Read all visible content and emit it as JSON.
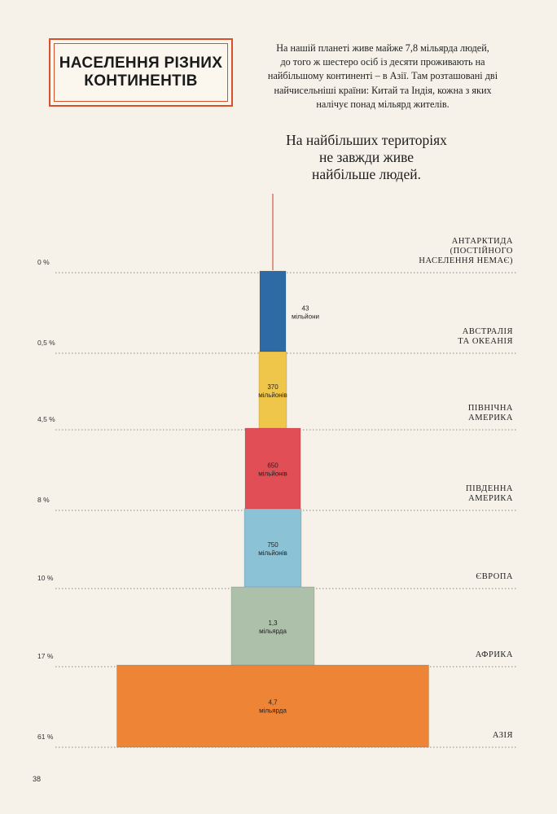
{
  "header": {
    "title_line1": "Населення різних",
    "title_line2": "континентів",
    "intro_lines": [
      "На нашій планеті живе майже 7,8 мільярда людей,",
      "до того ж шестеро осіб із десяти проживають на",
      "найбільшому континенті – в Азії. Там розташовані дві",
      "найчисельніші країни: Китай та Індія, кожна з яких",
      "налічує понад мільярд жителів."
    ],
    "subtitle_lines": [
      "На найбільших територіях",
      "не завжди живе",
      "найбільше людей."
    ]
  },
  "page_number": "38",
  "colors": {
    "title_border": "#d9502a",
    "line": "#8a8a8a",
    "antenna": "#c23a2a"
  },
  "chart_data": {
    "type": "bar",
    "orientation": "stacked-tower",
    "title": "",
    "xlabel": "",
    "ylabel": "",
    "tiers": [
      {
        "continent": [
          "АНТАРКТИДА",
          "(ПОСТІЙНОГО",
          "НАСЕЛЕННЯ НЕМАЄ)"
        ],
        "percent": "0 %",
        "value_lines": [],
        "population_millions": 0,
        "color": "#c23a2a"
      },
      {
        "continent": [
          "АВСТРАЛІЯ",
          "ТА ОКЕАНІЯ"
        ],
        "percent": "0,5 %",
        "value_lines": [
          "43",
          "мільйони"
        ],
        "population_millions": 43,
        "color": "#2e6aa6"
      },
      {
        "continent": [
          "ПІВНІЧНА",
          "АМЕРИКА"
        ],
        "percent": "4,5 %",
        "value_lines": [
          "370",
          "мільйонів"
        ],
        "population_millions": 370,
        "color": "#f0c64a"
      },
      {
        "continent": [
          "ПІВДЕННА",
          "АМЕРИКА"
        ],
        "percent": "8 %",
        "value_lines": [
          "650",
          "мільйонів"
        ],
        "population_millions": 650,
        "color": "#e24e55"
      },
      {
        "continent": [
          "ЄВРОПА"
        ],
        "percent": "10 %",
        "value_lines": [
          "750",
          "мільйонів"
        ],
        "population_millions": 750,
        "color": "#8cc2d6"
      },
      {
        "continent": [
          "АФРИКА"
        ],
        "percent": "17 %",
        "value_lines": [
          "1,3",
          "мільярда"
        ],
        "population_millions": 1300,
        "color": "#adc0aa"
      },
      {
        "continent": [
          "АЗІЯ"
        ],
        "percent": "61 %",
        "value_lines": [
          "4,7",
          "мільярда"
        ],
        "population_millions": 4700,
        "color": "#ee8435"
      }
    ]
  }
}
